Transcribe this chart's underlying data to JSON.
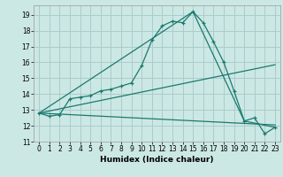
{
  "xlabel": "Humidex (Indice chaleur)",
  "background_color": "#cce8e4",
  "grid_color": "#aacccc",
  "line_color": "#1a7a6e",
  "xlim": [
    -0.5,
    23.5
  ],
  "ylim": [
    11,
    19.6
  ],
  "yticks": [
    11,
    12,
    13,
    14,
    15,
    16,
    17,
    18,
    19
  ],
  "xticks": [
    0,
    1,
    2,
    3,
    4,
    5,
    6,
    7,
    8,
    9,
    10,
    11,
    12,
    13,
    14,
    15,
    16,
    17,
    18,
    19,
    20,
    21,
    22,
    23
  ],
  "main_series": {
    "x": [
      0,
      1,
      2,
      3,
      4,
      5,
      6,
      7,
      8,
      9,
      10,
      11,
      12,
      13,
      14,
      15,
      16,
      17,
      18,
      19,
      20,
      21,
      22,
      23
    ],
    "y": [
      12.8,
      12.6,
      12.7,
      13.7,
      13.8,
      13.9,
      14.2,
      14.3,
      14.5,
      14.7,
      15.8,
      17.4,
      18.3,
      18.6,
      18.5,
      19.2,
      18.5,
      17.3,
      16.0,
      14.2,
      12.3,
      12.5,
      11.5,
      11.9
    ]
  },
  "straight_lines": [
    {
      "x": [
        0,
        15,
        20,
        23
      ],
      "y": [
        12.8,
        19.2,
        12.3,
        11.9
      ]
    },
    {
      "x": [
        0,
        23
      ],
      "y": [
        12.8,
        15.85
      ]
    },
    {
      "x": [
        0,
        23
      ],
      "y": [
        12.8,
        12.05
      ]
    }
  ],
  "xlabel_fontsize": 6.5,
  "tick_fontsize": 5.5
}
